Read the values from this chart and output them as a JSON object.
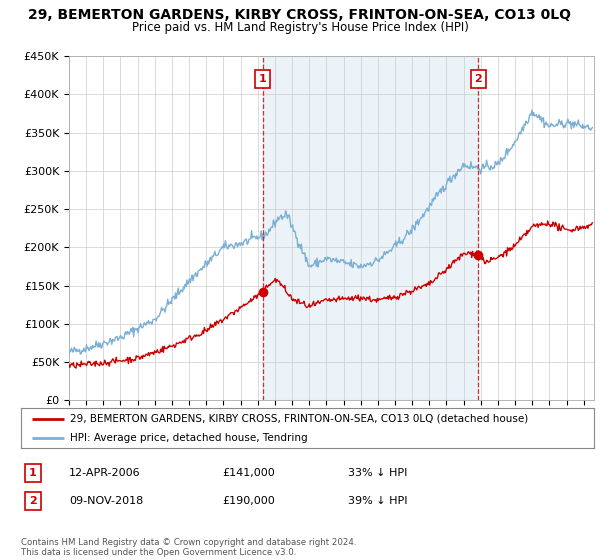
{
  "title": "29, BEMERTON GARDENS, KIRBY CROSS, FRINTON-ON-SEA, CO13 0LQ",
  "subtitle": "Price paid vs. HM Land Registry's House Price Index (HPI)",
  "ylim": [
    0,
    450000
  ],
  "yticks": [
    0,
    50000,
    100000,
    150000,
    200000,
    250000,
    300000,
    350000,
    400000,
    450000
  ],
  "ytick_labels": [
    "£0",
    "£50K",
    "£100K",
    "£150K",
    "£200K",
    "£250K",
    "£300K",
    "£350K",
    "£400K",
    "£450K"
  ],
  "hpi_color": "#7bafd4",
  "hpi_fill_color": "#ddeeff",
  "price_color": "#cc0000",
  "annotation_color": "#cc0000",
  "background_color": "#ffffff",
  "grid_color": "#cccccc",
  "legend_label_price": "29, BEMERTON GARDENS, KIRBY CROSS, FRINTON-ON-SEA, CO13 0LQ (detached house)",
  "legend_label_hpi": "HPI: Average price, detached house, Tendring",
  "marker1_date": "12-APR-2006",
  "marker1_price": "£141,000",
  "marker1_pct": "33% ↓ HPI",
  "marker2_date": "09-NOV-2018",
  "marker2_price": "£190,000",
  "marker2_pct": "39% ↓ HPI",
  "footnote": "Contains HM Land Registry data © Crown copyright and database right 2024.\nThis data is licensed under the Open Government Licence v3.0.",
  "xstart_year": 1995,
  "xend_year": 2025,
  "sale1_year": 2006.28,
  "sale1_price": 141000,
  "sale2_year": 2018.86,
  "sale2_price": 190000
}
